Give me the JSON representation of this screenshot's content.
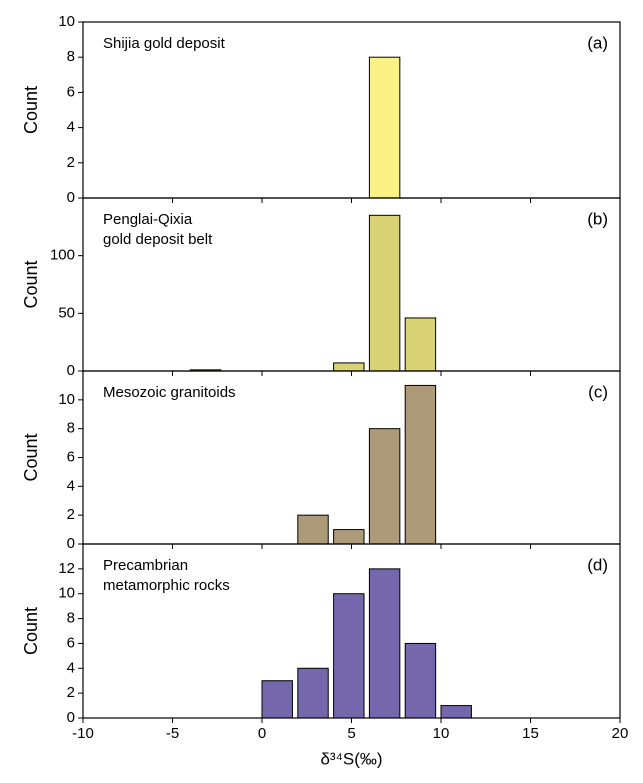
{
  "chart_data": [
    {
      "type": "histogram",
      "annotation": [
        "Shijia gold deposit"
      ],
      "panel_label": "(a)",
      "ylabel": "Count",
      "color": "#faf286",
      "bins": [
        6,
        8
      ],
      "counts": [
        8
      ],
      "xlim": [
        -10,
        20
      ],
      "ylim": [
        0,
        10
      ],
      "yticks": [
        0,
        2,
        4,
        6,
        8,
        10
      ]
    },
    {
      "type": "histogram",
      "annotation": [
        "Penglai-Qixia",
        "gold deposit belt"
      ],
      "panel_label": "(b)",
      "ylabel": "Count",
      "color": "#d9d275",
      "bins": [
        -4,
        -2,
        0,
        2,
        4,
        6,
        8,
        10
      ],
      "counts": [
        1,
        0,
        0,
        0,
        7,
        135,
        46
      ],
      "xlim": [
        -10,
        20
      ],
      "ylim": [
        0,
        150
      ],
      "yticks": [
        0,
        50,
        100
      ]
    },
    {
      "type": "histogram",
      "annotation": [
        "Mesozoic granitoids"
      ],
      "panel_label": "(c)",
      "ylabel": "Count",
      "color": "#ad9a78",
      "bins": [
        2,
        4,
        6,
        8,
        10
      ],
      "counts": [
        2,
        1,
        8,
        11
      ],
      "xlim": [
        -10,
        20
      ],
      "ylim": [
        0,
        12
      ],
      "yticks": [
        0,
        2,
        4,
        6,
        8,
        10
      ]
    },
    {
      "type": "histogram",
      "annotation": [
        "Precambrian",
        "metamorphic rocks"
      ],
      "panel_label": "(d)",
      "ylabel": "Count",
      "color": "#7567ab",
      "bins": [
        0,
        2,
        4,
        6,
        8,
        10,
        12
      ],
      "counts": [
        3,
        4,
        10,
        12,
        6,
        1
      ],
      "xlim": [
        -10,
        20
      ],
      "ylim": [
        0,
        14
      ],
      "yticks": [
        0,
        2,
        4,
        6,
        8,
        10,
        12
      ],
      "xticks": [
        -10,
        -5,
        0,
        5,
        10,
        15,
        20
      ],
      "xlabel": "δ³⁴S(‰)"
    }
  ]
}
